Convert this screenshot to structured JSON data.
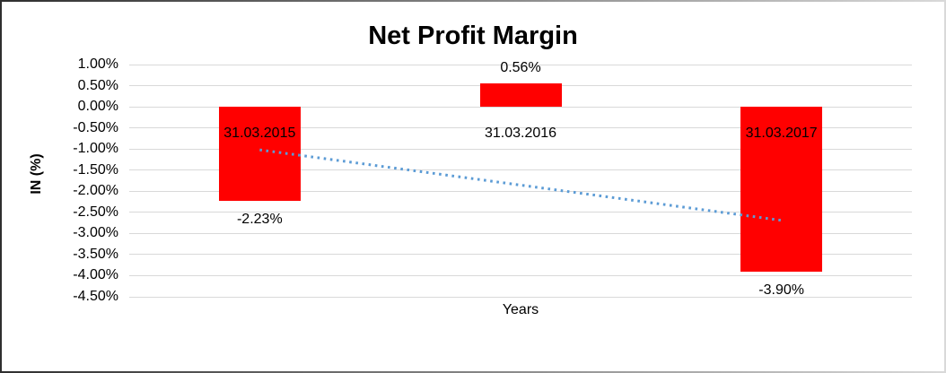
{
  "window": {
    "background": "#ffffff",
    "border_gradient": [
      "#2f2f2f",
      "#d9d9d9"
    ]
  },
  "chart_data": {
    "type": "bar",
    "title": "Net Profit Margin",
    "xlabel": "Years",
    "ylabel": "IN (%)",
    "categories": [
      "31.03.2015",
      "31.03.2016",
      "31.03.2017"
    ],
    "values": [
      -2.23,
      0.56,
      -3.9
    ],
    "data_labels": [
      "-2.23%",
      "0.56%",
      "-3.90%"
    ],
    "y_ticks": [
      "1.00%",
      "0.50%",
      "0.00%",
      "-0.50%",
      "-1.00%",
      "-1.50%",
      "-2.00%",
      "-2.50%",
      "-3.00%",
      "-3.50%",
      "-4.00%",
      "-4.50%"
    ],
    "ylim": [
      -4.5,
      1.0
    ],
    "y_step": 0.5,
    "grid": true,
    "legend": "none",
    "bar_color": "#ff0000",
    "gridline_color": "#d9d9d9",
    "text_color": "#000000",
    "trendline": {
      "type": "linear",
      "style": "dotted",
      "color": "#5b9bd5",
      "start_value": -1.02,
      "end_value": -2.69
    }
  }
}
